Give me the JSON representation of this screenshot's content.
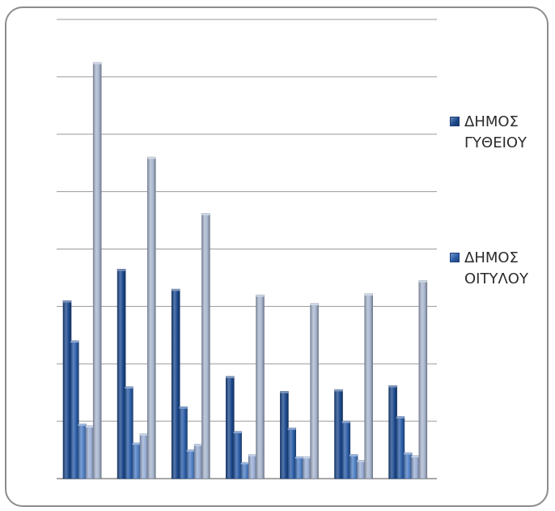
{
  "chart_data": {
    "type": "bar",
    "title": "",
    "xlabel": "",
    "ylabel": "",
    "ylim": [
      0,
      8
    ],
    "grid": true,
    "legend_position": "right",
    "categories": [
      "",
      "",
      "",
      "",
      "",
      "",
      ""
    ],
    "series": [
      {
        "name": "ΔΗΜΟΣ ΓΥΘΕΙΟΥ",
        "color": "#1d4a8e",
        "values": [
          3.1,
          3.65,
          3.3,
          1.78,
          1.52,
          1.55,
          1.62
        ]
      },
      {
        "name": "ΔΗΜΟΣ ΟΙΤΥΛΟΥ",
        "color": "#2c5ea8",
        "values": [
          2.4,
          1.6,
          1.25,
          0.82,
          0.88,
          1.0,
          1.08
        ]
      },
      {
        "color": "#4f7fc4",
        "values": [
          0.95,
          0.62,
          0.5,
          0.28,
          0.38,
          0.42,
          0.45
        ]
      },
      {
        "color": "#9aaed4",
        "values": [
          0.92,
          0.78,
          0.6,
          0.42,
          0.38,
          0.32,
          0.4
        ]
      },
      {
        "color": "#a9b7cf",
        "values": [
          7.25,
          5.6,
          4.62,
          3.2,
          3.05,
          3.22,
          3.45
        ]
      }
    ]
  }
}
